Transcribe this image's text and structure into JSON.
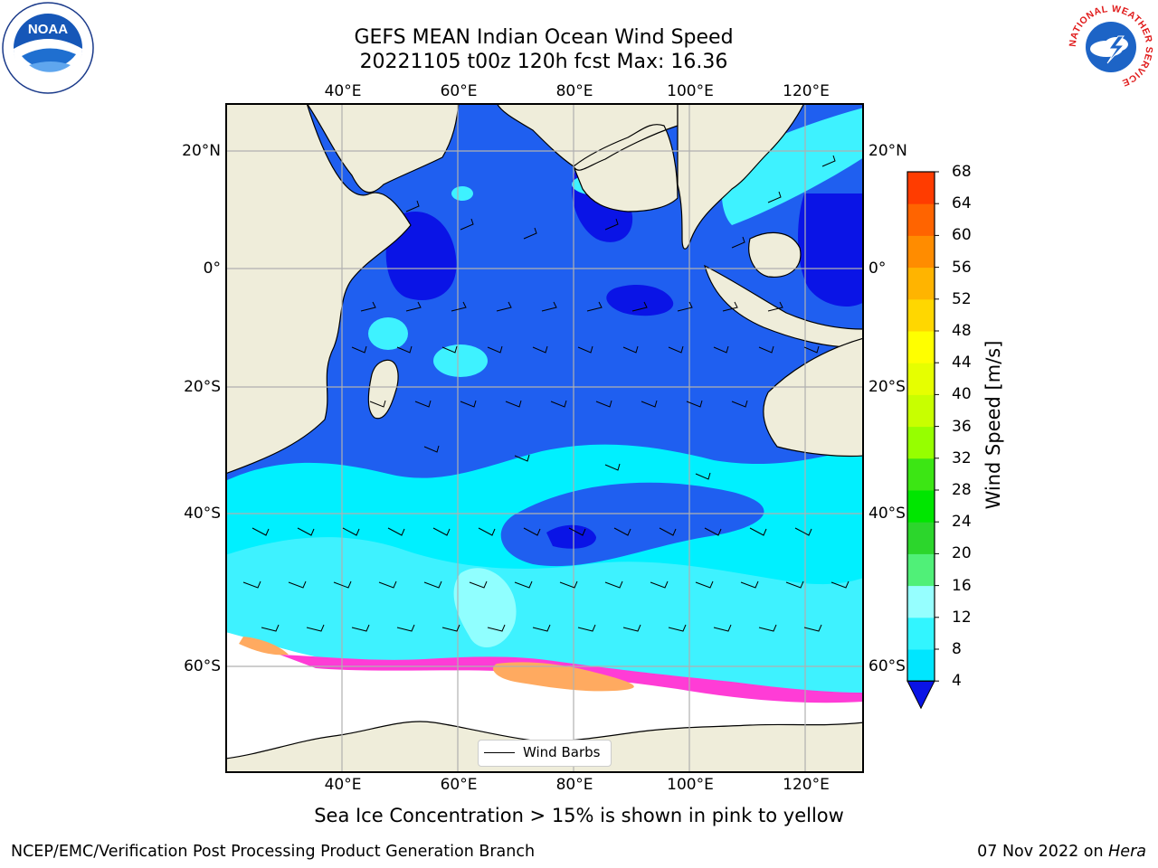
{
  "title": {
    "line1": "GEFS MEAN Indian Ocean Wind Speed",
    "line2": "20221105 t00z 120h fcst   Max: 16.36"
  },
  "map": {
    "lon_labels": [
      "40°E",
      "60°E",
      "80°E",
      "100°E",
      "120°E"
    ],
    "lat_labels": [
      "20°N",
      "0°",
      "20°S",
      "40°S",
      "60°S"
    ],
    "legend_label": "Wind Barbs",
    "colors": {
      "land": "#efedda",
      "sea_ice_area": "#ffffff",
      "band_4_8": "#1f5ff0",
      "band_0_4": "#0a14e6",
      "band_8_12": "#00f0ff",
      "band_12_16": "#3ef2ff",
      "band_16_20": "#90ffff",
      "ice_pink": "#ff3cd6",
      "ice_orange": "#ffaa60"
    }
  },
  "colorbar": {
    "title": "Wind Speed [m/s]",
    "tick_labels": [
      "4",
      "8",
      "12",
      "16",
      "20",
      "24",
      "28",
      "32",
      "36",
      "40",
      "44",
      "48",
      "52",
      "56",
      "60",
      "64",
      "68"
    ],
    "colors": [
      "#1e78ff",
      "#00e6ff",
      "#32f5ff",
      "#96ffff",
      "#50f078",
      "#2cd62c",
      "#00e600",
      "#3ce614",
      "#96ff00",
      "#c8ff00",
      "#e6ff00",
      "#ffff00",
      "#ffd700",
      "#ffb400",
      "#ff8c00",
      "#ff6400",
      "#ff3c00",
      "#ff0000"
    ],
    "extend_color": "#0a14e6"
  },
  "footnote": "Sea Ice Concentration > 15% is shown in pink to yellow",
  "credits": {
    "left": "NCEP/EMC/Verification Post Processing Product Generation Branch",
    "right_date": "07 Nov 2022 on ",
    "right_host": "Hera"
  },
  "logos": {
    "noaa_text": "NOAA",
    "nws_ring_text": "NATIONAL WEATHER SERVICE"
  }
}
